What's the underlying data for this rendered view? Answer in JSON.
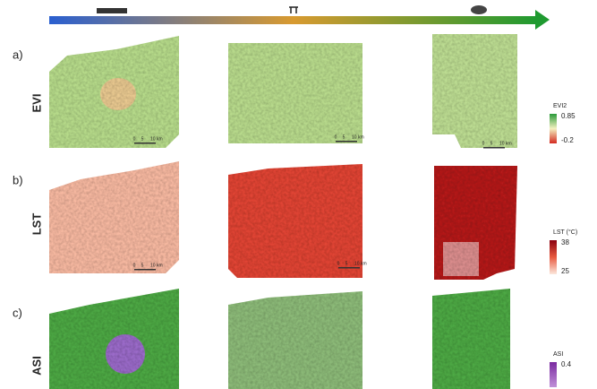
{
  "rows": [
    {
      "letter": "a)",
      "name": "EVI",
      "legend": {
        "title": "EVI2",
        "max": 0.85,
        "min": -0.2
      }
    },
    {
      "letter": "b)",
      "name": "LST",
      "legend": {
        "title": "LST (°C)",
        "max": 38,
        "min": 25
      }
    },
    {
      "letter": "c)",
      "name": "ASI",
      "legend": {
        "title": "ASI",
        "max": 0.4
      }
    }
  ],
  "scale_bar": {
    "zero": 0,
    "mid": 5,
    "end": "10 km"
  }
}
